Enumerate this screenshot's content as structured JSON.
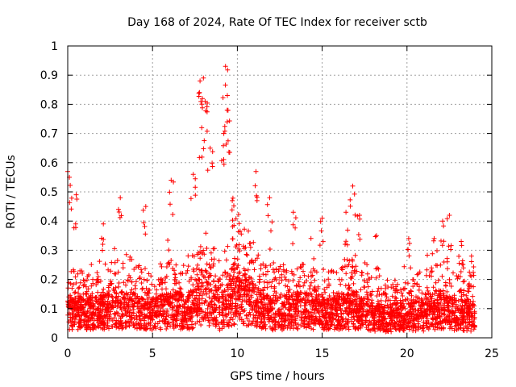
{
  "chart_data": {
    "type": "scatter",
    "title": "Day 168 of 2024, Rate Of TEC Index for receiver sctb",
    "xlabel": "GPS time / hours",
    "ylabel": "ROTI / TECUs",
    "xlim": [
      0,
      25
    ],
    "ylim": [
      0,
      1
    ],
    "x_ticks": [
      0,
      5,
      10,
      15,
      20,
      25
    ],
    "x_tick_labels": [
      "0",
      "5",
      "10",
      "15",
      "20",
      "25"
    ],
    "y_ticks": [
      0,
      0.1,
      0.2,
      0.3,
      0.4,
      0.5,
      0.6,
      0.7,
      0.8,
      0.9,
      1
    ],
    "y_tick_labels": [
      "0",
      "0.1",
      "0.2",
      "0.3",
      "0.4",
      "0.5",
      "0.6",
      "0.7",
      "0.8",
      "0.9",
      "1"
    ],
    "grid": true,
    "marker": "+",
    "color": "#ff0000",
    "series": [
      {
        "name": "ROTI",
        "time_range_hours": [
          0,
          24
        ],
        "baseline_profile": [
          [
            0.0,
            0.1
          ],
          [
            0.5,
            0.11
          ],
          [
            1.0,
            0.1
          ],
          [
            2.0,
            0.11
          ],
          [
            3.0,
            0.12
          ],
          [
            4.0,
            0.11
          ],
          [
            5.0,
            0.1
          ],
          [
            6.0,
            0.12
          ],
          [
            7.0,
            0.11
          ],
          [
            7.5,
            0.13
          ],
          [
            8.0,
            0.18
          ],
          [
            8.5,
            0.16
          ],
          [
            9.0,
            0.1
          ],
          [
            9.5,
            0.15
          ],
          [
            10.0,
            0.18
          ],
          [
            11.0,
            0.14
          ],
          [
            12.0,
            0.1
          ],
          [
            13.0,
            0.11
          ],
          [
            14.0,
            0.12
          ],
          [
            15.0,
            0.1
          ],
          [
            16.0,
            0.11
          ],
          [
            17.0,
            0.12
          ],
          [
            18.0,
            0.09
          ],
          [
            19.0,
            0.08
          ],
          [
            20.0,
            0.1
          ],
          [
            21.0,
            0.09
          ],
          [
            22.0,
            0.11
          ],
          [
            23.0,
            0.1
          ],
          [
            24.0,
            0.09
          ]
        ],
        "peaks": [
          [
            0.0,
            0.57
          ],
          [
            0.1,
            0.55
          ],
          [
            0.5,
            0.49
          ],
          [
            2.1,
            0.39
          ],
          [
            3.1,
            0.48
          ],
          [
            4.6,
            0.45
          ],
          [
            6.1,
            0.54
          ],
          [
            7.4,
            0.56
          ],
          [
            7.8,
            0.88
          ],
          [
            8.0,
            0.89
          ],
          [
            7.9,
            0.72
          ],
          [
            8.1,
            0.81
          ],
          [
            8.4,
            0.65
          ],
          [
            9.3,
            0.93
          ],
          [
            9.4,
            0.78
          ],
          [
            9.4,
            0.74
          ],
          [
            9.2,
            0.7
          ],
          [
            9.7,
            0.47
          ],
          [
            11.1,
            0.57
          ],
          [
            11.9,
            0.48
          ],
          [
            13.3,
            0.43
          ],
          [
            15.0,
            0.41
          ],
          [
            16.4,
            0.43
          ],
          [
            16.8,
            0.52
          ],
          [
            17.2,
            0.42
          ],
          [
            18.2,
            0.35
          ],
          [
            20.1,
            0.34
          ],
          [
            21.6,
            0.34
          ],
          [
            22.1,
            0.4
          ],
          [
            22.5,
            0.42
          ],
          [
            23.2,
            0.33
          ],
          [
            23.8,
            0.28
          ]
        ]
      }
    ]
  }
}
